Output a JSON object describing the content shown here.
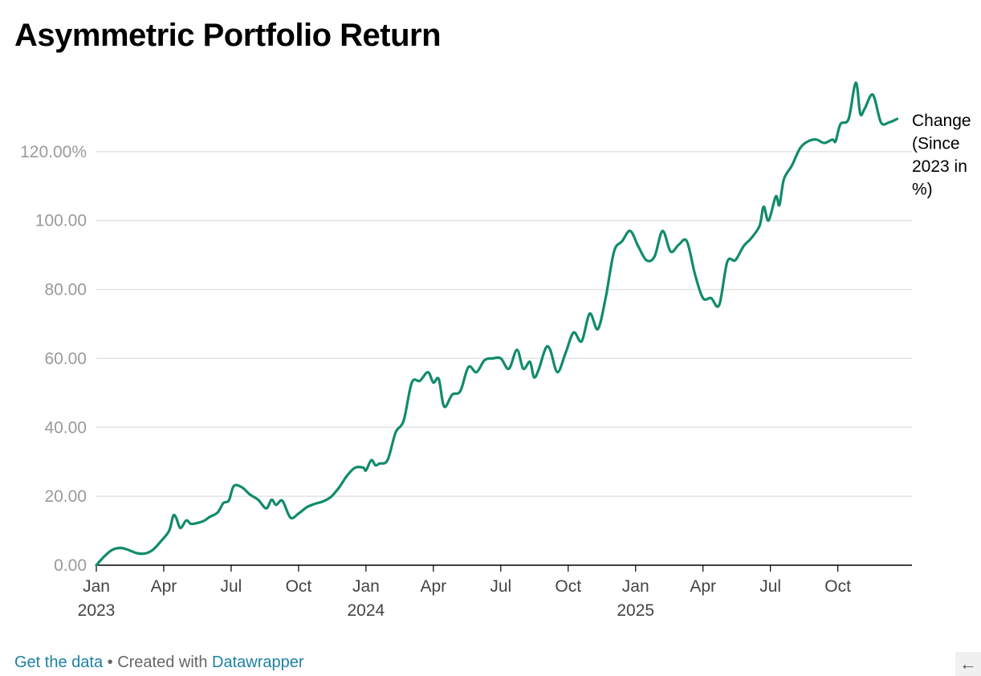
{
  "title": "Asymmetric Portfolio Return",
  "footer": {
    "get_data": "Get the data",
    "separator": " • Created with ",
    "datawrapper": "Datawrapper"
  },
  "corner_icon": "arrow-left-icon",
  "chart_data": {
    "type": "line",
    "title": "Asymmetric Portfolio Return",
    "series_label": [
      "Change",
      "(Since",
      "2023 in",
      "%)"
    ],
    "line_color": "#118b6b",
    "ylim": [
      0,
      140
    ],
    "yticks": [
      {
        "value": 0,
        "label": "0.00"
      },
      {
        "value": 20,
        "label": "20.00"
      },
      {
        "value": 40,
        "label": "40.00"
      },
      {
        "value": 60,
        "label": "60.00"
      },
      {
        "value": 80,
        "label": "80.00"
      },
      {
        "value": 100,
        "label": "100.00"
      },
      {
        "value": 120,
        "label": "120.00%"
      }
    ],
    "xlim": [
      0,
      36.3
    ],
    "xticks": [
      {
        "value": 0,
        "label": "Jan",
        "year": "2023"
      },
      {
        "value": 3,
        "label": "Apr"
      },
      {
        "value": 6,
        "label": "Jul"
      },
      {
        "value": 9,
        "label": "Oct"
      },
      {
        "value": 12,
        "label": "Jan",
        "year": "2024"
      },
      {
        "value": 15,
        "label": "Apr"
      },
      {
        "value": 18,
        "label": "Jul"
      },
      {
        "value": 21,
        "label": "Oct"
      },
      {
        "value": 24,
        "label": "Jan",
        "year": "2025"
      },
      {
        "value": 27,
        "label": "Apr"
      },
      {
        "value": 30,
        "label": "Jul"
      },
      {
        "value": 33,
        "label": "Oct"
      }
    ],
    "points": [
      [
        0.0,
        0.0
      ],
      [
        0.36,
        2.6
      ],
      [
        0.72,
        4.5
      ],
      [
        1.08,
        5.0
      ],
      [
        1.44,
        4.4
      ],
      [
        1.8,
        3.5
      ],
      [
        2.16,
        3.4
      ],
      [
        2.52,
        4.5
      ],
      [
        2.88,
        7.0
      ],
      [
        3.24,
        10.0
      ],
      [
        3.42,
        14.3
      ],
      [
        3.55,
        13.8
      ],
      [
        3.74,
        10.8
      ],
      [
        4.0,
        13.0
      ],
      [
        4.21,
        12.0
      ],
      [
        4.47,
        12.2
      ],
      [
        4.8,
        12.9
      ],
      [
        5.04,
        14.0
      ],
      [
        5.4,
        15.3
      ],
      [
        5.65,
        18.0
      ],
      [
        5.9,
        18.8
      ],
      [
        6.12,
        23.0
      ],
      [
        6.48,
        22.6
      ],
      [
        6.84,
        20.5
      ],
      [
        7.2,
        19.0
      ],
      [
        7.56,
        16.5
      ],
      [
        7.8,
        19.0
      ],
      [
        8.0,
        17.5
      ],
      [
        8.28,
        18.7
      ],
      [
        8.64,
        13.8
      ],
      [
        9.0,
        15.0
      ],
      [
        9.36,
        16.8
      ],
      [
        9.72,
        17.8
      ],
      [
        10.08,
        18.5
      ],
      [
        10.44,
        19.8
      ],
      [
        10.8,
        22.5
      ],
      [
        11.16,
        26.0
      ],
      [
        11.52,
        28.3
      ],
      [
        11.88,
        28.3
      ],
      [
        12.0,
        27.5
      ],
      [
        12.24,
        30.5
      ],
      [
        12.42,
        29.0
      ],
      [
        12.6,
        29.5
      ],
      [
        12.96,
        30.5
      ],
      [
        13.32,
        38.5
      ],
      [
        13.68,
        42.0
      ],
      [
        14.04,
        53.0
      ],
      [
        14.4,
        53.5
      ],
      [
        14.76,
        56.0
      ],
      [
        15.0,
        53.0
      ],
      [
        15.24,
        54.0
      ],
      [
        15.48,
        46.0
      ],
      [
        15.84,
        49.5
      ],
      [
        16.2,
        50.5
      ],
      [
        16.56,
        57.5
      ],
      [
        16.92,
        56.0
      ],
      [
        17.28,
        59.5
      ],
      [
        17.64,
        60.0
      ],
      [
        18.0,
        60.0
      ],
      [
        18.36,
        57.0
      ],
      [
        18.72,
        62.5
      ],
      [
        19.0,
        57.0
      ],
      [
        19.3,
        59.0
      ],
      [
        19.48,
        54.5
      ],
      [
        19.7,
        57.0
      ],
      [
        20.0,
        63.0
      ],
      [
        20.2,
        62.5
      ],
      [
        20.52,
        56.0
      ],
      [
        20.88,
        61.5
      ],
      [
        21.24,
        67.5
      ],
      [
        21.6,
        65.0
      ],
      [
        21.96,
        73.0
      ],
      [
        22.32,
        68.5
      ],
      [
        22.68,
        78.0
      ],
      [
        23.04,
        91.0
      ],
      [
        23.4,
        94.0
      ],
      [
        23.76,
        97.0
      ],
      [
        24.12,
        92.5
      ],
      [
        24.48,
        88.5
      ],
      [
        24.84,
        89.5
      ],
      [
        25.2,
        97.0
      ],
      [
        25.56,
        91.0
      ],
      [
        25.92,
        93.0
      ],
      [
        26.28,
        94.0
      ],
      [
        26.64,
        84.5
      ],
      [
        27.0,
        77.5
      ],
      [
        27.36,
        77.5
      ],
      [
        27.72,
        75.5
      ],
      [
        28.08,
        88.0
      ],
      [
        28.44,
        88.5
      ],
      [
        28.8,
        92.5
      ],
      [
        29.16,
        95.0
      ],
      [
        29.52,
        98.5
      ],
      [
        29.7,
        104.0
      ],
      [
        29.92,
        100.0
      ],
      [
        30.24,
        107.0
      ],
      [
        30.4,
        104.5
      ],
      [
        30.6,
        112.0
      ],
      [
        30.96,
        116.0
      ],
      [
        31.32,
        121.0
      ],
      [
        31.68,
        123.0
      ],
      [
        32.04,
        123.5
      ],
      [
        32.4,
        122.5
      ],
      [
        32.76,
        123.5
      ],
      [
        32.9,
        123.0
      ],
      [
        33.12,
        128.0
      ],
      [
        33.48,
        129.5
      ],
      [
        33.8,
        140.0
      ],
      [
        34.0,
        131.0
      ],
      [
        34.2,
        132.5
      ],
      [
        34.56,
        136.5
      ],
      [
        34.92,
        128.5
      ],
      [
        35.28,
        128.5
      ],
      [
        35.64,
        129.5
      ]
    ]
  }
}
